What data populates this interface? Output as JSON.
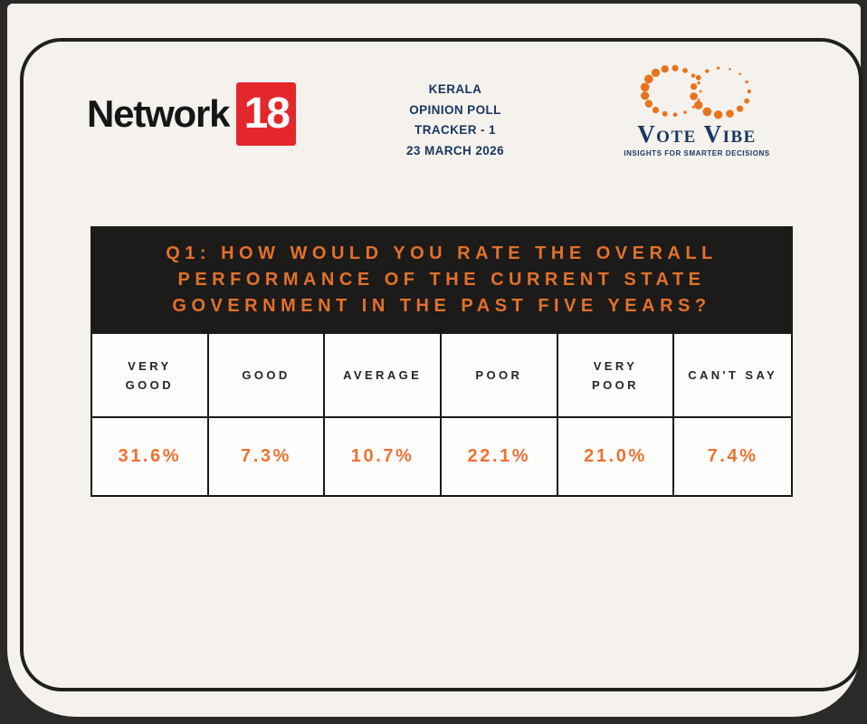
{
  "colors": {
    "page_bg": "#2b2a28",
    "card_bg": "#f5f2ee",
    "frame_line": "#202020",
    "badge_red": "#e4272a",
    "navy": "#17375e",
    "banner_bg": "#1c1b19",
    "banner_text": "#e2712c",
    "table_line": "#191919",
    "cell_bg": "#fefdfc",
    "header_text": "#23262b",
    "value_text": "#ec7233",
    "dot_orange": "#e8731e"
  },
  "header": {
    "network18_logo": {
      "wordmark": "Network",
      "badge": "18"
    },
    "poll_tracker": {
      "lines": [
        "KERALA",
        "OPINION POLL",
        "TRACKER - 1",
        "23 MARCH 2026"
      ]
    },
    "votevibe_logo": {
      "brand": "Vote Vibe",
      "tagline": "INSIGHTS FOR SMARTER DECISIONS"
    }
  },
  "question_banner": {
    "lines": [
      "Q1: HOW WOULD YOU RATE THE OVERALL",
      "PERFORMANCE OF THE CURRENT STATE",
      "GOVERNMENT IN THE PAST FIVE YEARS?"
    ]
  },
  "chart_data": {
    "type": "table",
    "title": "Q1: HOW WOULD YOU RATE THE OVERALL PERFORMANCE OF THE CURRENT STATE GOVERNMENT IN THE PAST FIVE YEARS?",
    "categories": [
      "VERY GOOD",
      "GOOD",
      "AVERAGE",
      "POOR",
      "VERY POOR",
      "CAN'T SAY"
    ],
    "values": [
      31.6,
      7.3,
      10.7,
      22.1,
      21.0,
      7.4
    ],
    "value_labels": [
      "31.6%",
      "7.3%",
      "10.7%",
      "22.1%",
      "21.0%",
      "7.4%"
    ],
    "unit": "%"
  }
}
